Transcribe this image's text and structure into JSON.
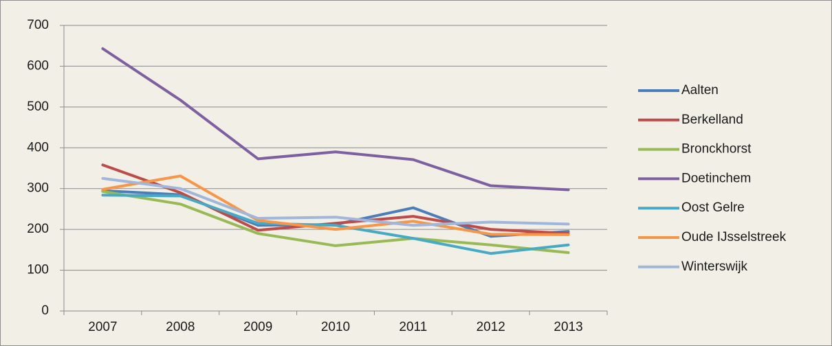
{
  "chart_data": {
    "type": "line",
    "categories": [
      "2007",
      "2008",
      "2009",
      "2010",
      "2011",
      "2012",
      "2013"
    ],
    "series": [
      {
        "name": "Aalten",
        "color": "#4a7ebb",
        "values": [
          295,
          285,
          210,
          212,
          253,
          183,
          195
        ]
      },
      {
        "name": "Berkelland",
        "color": "#be4b48",
        "values": [
          358,
          290,
          198,
          215,
          232,
          200,
          190
        ]
      },
      {
        "name": "Bronckhorst",
        "color": "#98b954",
        "values": [
          293,
          262,
          190,
          160,
          178,
          162,
          143
        ]
      },
      {
        "name": "Doetinchem",
        "color": "#7d60a0",
        "values": [
          643,
          517,
          373,
          390,
          371,
          307,
          297
        ]
      },
      {
        "name": "Oost Gelre",
        "color": "#46aac5",
        "values": [
          284,
          282,
          215,
          210,
          178,
          141,
          162
        ]
      },
      {
        "name": "Oude IJsselstreek",
        "color": "#f79646",
        "values": [
          298,
          331,
          222,
          200,
          220,
          188,
          187
        ]
      },
      {
        "name": "Winterswijk",
        "color": "#a0b6da",
        "values": [
          325,
          300,
          227,
          230,
          210,
          218,
          213
        ]
      }
    ],
    "ylim": [
      0,
      700
    ],
    "yticks": [
      0,
      100,
      200,
      300,
      400,
      500,
      600,
      700
    ],
    "grid": true,
    "legend": "right"
  }
}
